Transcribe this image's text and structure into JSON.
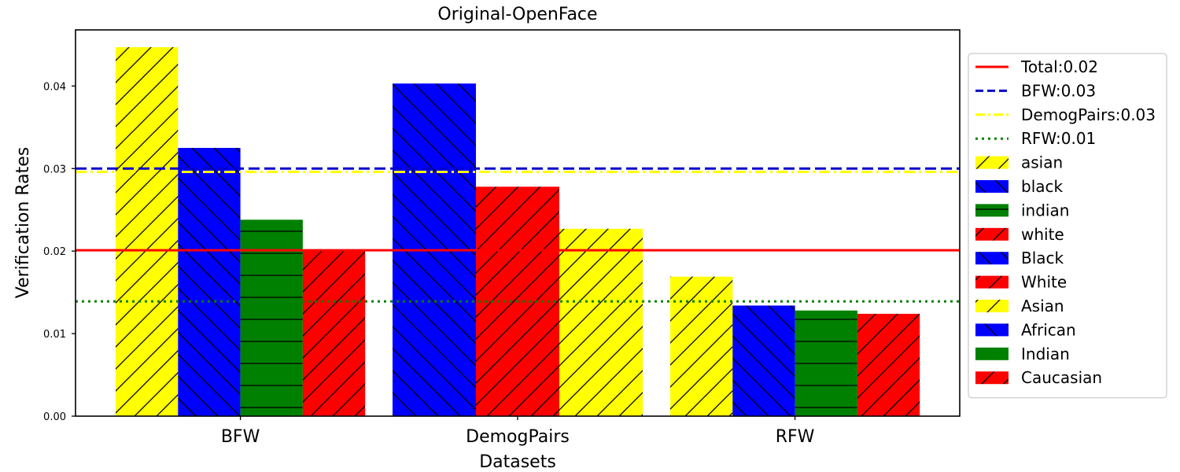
{
  "chart_data": {
    "type": "bar",
    "title": "Original-OpenFace",
    "xlabel": "Datasets",
    "ylabel": "Verification Rates",
    "ylim": [
      0,
      0.0468
    ],
    "yticks": [
      "0.00",
      "0.01",
      "0.02",
      "0.03",
      "0.04"
    ],
    "grid": false,
    "legend_position": "right, outside plot",
    "groups": [
      {
        "name": "BFW",
        "bars": [
          {
            "label": "asian",
            "value": 0.0447,
            "color": "#ffff00",
            "hatch": "forward"
          },
          {
            "label": "black",
            "value": 0.0325,
            "color": "#0000ff",
            "hatch": "back"
          },
          {
            "label": "indian",
            "value": 0.0238,
            "color": "#008000",
            "hatch": "horizontal"
          },
          {
            "label": "white",
            "value": 0.0201,
            "color": "#ff0000",
            "hatch": "forward"
          }
        ]
      },
      {
        "name": "DemogPairs",
        "bars": [
          {
            "label": "Black",
            "value": 0.0403,
            "color": "#0000ff",
            "hatch": "back"
          },
          {
            "label": "White",
            "value": 0.0278,
            "color": "#ff0000",
            "hatch": "forward"
          },
          {
            "label": "Asian",
            "value": 0.0227,
            "color": "#ffff00",
            "hatch": "forward"
          }
        ]
      },
      {
        "name": "RFW",
        "bars": [
          {
            "label": "Asian",
            "value": 0.0169,
            "color": "#ffff00",
            "hatch": "forward"
          },
          {
            "label": "African",
            "value": 0.0134,
            "color": "#0000ff",
            "hatch": "back"
          },
          {
            "label": "Indian",
            "value": 0.0128,
            "color": "#008000",
            "hatch": "horizontal"
          },
          {
            "label": "Caucasian",
            "value": 0.0124,
            "color": "#ff0000",
            "hatch": "forward"
          }
        ]
      }
    ],
    "reference_lines": [
      {
        "label": "Total:0.02",
        "value": 0.0201,
        "color": "#ff0000",
        "style": "solid"
      },
      {
        "label": "BFW:0.03",
        "value": 0.03,
        "color": "#0000cc",
        "style": "dashed"
      },
      {
        "label": "DemogPairs:0.03",
        "value": 0.0296,
        "color": "#ffff00",
        "style": "dashdot"
      },
      {
        "label": "RFW:0.01",
        "value": 0.0139,
        "color": "#008000",
        "style": "dotted"
      }
    ],
    "legend": [
      {
        "label": "Total:0.02",
        "kind": "line",
        "color": "#ff0000",
        "style": "solid"
      },
      {
        "label": "BFW:0.03",
        "kind": "line",
        "color": "#0000cc",
        "style": "dashed"
      },
      {
        "label": "DemogPairs:0.03",
        "kind": "line",
        "color": "#ffff00",
        "style": "dashdot"
      },
      {
        "label": "RFW:0.01",
        "kind": "line",
        "color": "#008000",
        "style": "dotted"
      },
      {
        "label": "asian",
        "kind": "patch",
        "color": "#ffff00",
        "hatch": "forward"
      },
      {
        "label": "black",
        "kind": "patch",
        "color": "#0000ff",
        "hatch": "back"
      },
      {
        "label": "indian",
        "kind": "patch",
        "color": "#008000",
        "hatch": "horizontal"
      },
      {
        "label": "white",
        "kind": "patch",
        "color": "#ff0000",
        "hatch": "forward"
      },
      {
        "label": "Black",
        "kind": "patch",
        "color": "#0000ff",
        "hatch": "back"
      },
      {
        "label": "White",
        "kind": "patch",
        "color": "#ff0000",
        "hatch": "forward"
      },
      {
        "label": "Asian",
        "kind": "patch",
        "color": "#ffff00",
        "hatch": "forward"
      },
      {
        "label": "African",
        "kind": "patch",
        "color": "#0000ff",
        "hatch": "back"
      },
      {
        "label": "Indian",
        "kind": "patch",
        "color": "#008000",
        "hatch": "horizontal"
      },
      {
        "label": "Caucasian",
        "kind": "patch",
        "color": "#ff0000",
        "hatch": "forward"
      }
    ]
  }
}
